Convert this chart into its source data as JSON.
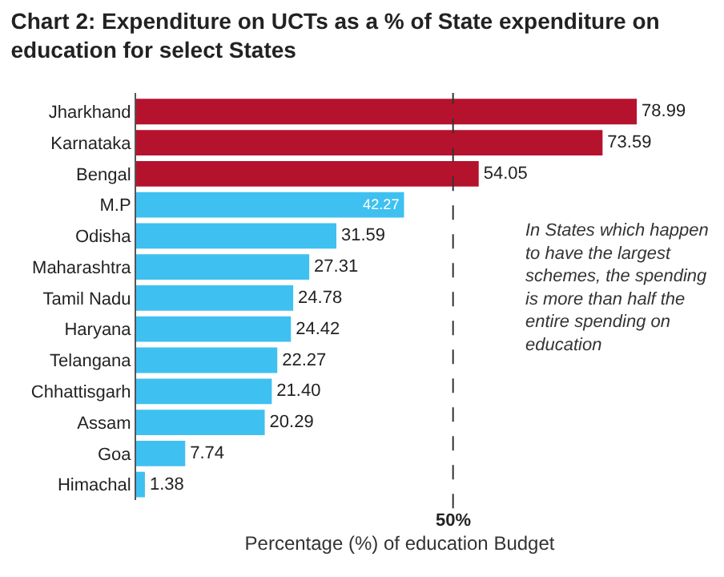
{
  "chart_data": {
    "type": "bar",
    "orientation": "horizontal",
    "title": "Chart 2: Expenditure on UCTs as a % of State expenditure on education for select States",
    "xlabel": "Percentage (%) of education Budget",
    "categories": [
      "Jharkhand",
      "Karnataka",
      "Bengal",
      "M.P",
      "Odisha",
      "Maharashtra",
      "Tamil Nadu",
      "Haryana",
      "Telangana",
      "Chhattisgarh",
      "Assam",
      "Goa",
      "Himachal"
    ],
    "values": [
      78.99,
      73.59,
      54.05,
      42.27,
      31.59,
      27.31,
      24.78,
      24.42,
      22.27,
      21.4,
      20.29,
      7.74,
      1.38
    ],
    "colors": [
      "#b5122e",
      "#b5122e",
      "#b5122e",
      "#3ec1f0",
      "#3ec1f0",
      "#3ec1f0",
      "#3ec1f0",
      "#3ec1f0",
      "#3ec1f0",
      "#3ec1f0",
      "#3ec1f0",
      "#3ec1f0",
      "#3ec1f0"
    ],
    "value_labels": [
      "78.99",
      "73.59",
      "54.05",
      "42.27",
      "31.59",
      "27.31",
      "24.78",
      "24.42",
      "22.27",
      "21.40",
      "20.29",
      "7.74",
      "1.38"
    ],
    "tick_labels": "y",
    "legend": false,
    "ref_lines": [
      {
        "axis": "x",
        "value": 50,
        "label": "50%",
        "color": "#333333",
        "line_style": "dashed"
      }
    ],
    "annotations": [
      "In States which happen to have the largest schemes, the spending is more than half the entire spending on education"
    ]
  }
}
